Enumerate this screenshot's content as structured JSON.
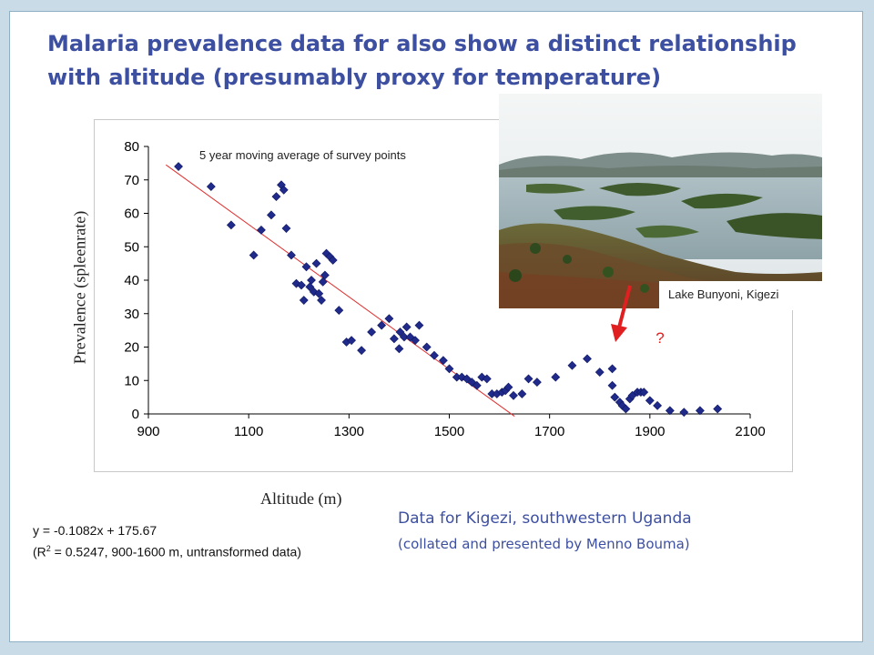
{
  "title": {
    "text_before": "Malaria prevalence data for also show a distinct relationship with altitude (presumably proxy for ",
    "bold_word": "temperature",
    "text_after": ")"
  },
  "labels": {
    "moving_average": "5 year moving average of survey points",
    "photo_caption": "Lake Bunyoni, Kigezi",
    "question_mark": "?"
  },
  "regression": {
    "equation": "y = -0.1082x + 175.67",
    "r2_open": "(R",
    "r2_sup": "2",
    "r2_rest": " = 0.5247, 900-1600 m, untransformed data)"
  },
  "data_source": {
    "line1": "Data for Kigezi, southwestern Uganda",
    "line2": "(collated and presented by Menno Bouma)"
  },
  "colors": {
    "title": "#3d4fa0",
    "marker": "#1f2a8a",
    "trend_line": "#e03030",
    "arrow": "#e02020"
  },
  "chart_data": {
    "type": "scatter",
    "xlabel": "Altitude (m)",
    "ylabel": "Prevalence (spleenrate)",
    "xlim": [
      900,
      2100
    ],
    "ylim": [
      0,
      80
    ],
    "xticks": [
      900,
      1100,
      1300,
      1500,
      1700,
      1900,
      2100
    ],
    "yticks": [
      0,
      10,
      20,
      30,
      40,
      50,
      60,
      70,
      80
    ],
    "grid": false,
    "trend_line": {
      "slope": -0.1082,
      "intercept": 175.67,
      "x_range": [
        935,
        1630
      ]
    },
    "points": [
      [
        960,
        74
      ],
      [
        1025,
        68
      ],
      [
        1065,
        56.5
      ],
      [
        1110,
        47.5
      ],
      [
        1125,
        55
      ],
      [
        1145,
        59.5
      ],
      [
        1155,
        65
      ],
      [
        1165,
        68.5
      ],
      [
        1170,
        67
      ],
      [
        1175,
        55.5
      ],
      [
        1185,
        47.5
      ],
      [
        1195,
        39
      ],
      [
        1205,
        38.5
      ],
      [
        1210,
        34
      ],
      [
        1215,
        44
      ],
      [
        1222,
        38
      ],
      [
        1225,
        40
      ],
      [
        1230,
        36.5
      ],
      [
        1235,
        45
      ],
      [
        1240,
        36
      ],
      [
        1245,
        34
      ],
      [
        1248,
        39.5
      ],
      [
        1252,
        41.5
      ],
      [
        1255,
        48
      ],
      [
        1262,
        47
      ],
      [
        1268,
        46
      ],
      [
        1280,
        31
      ],
      [
        1295,
        21.5
      ],
      [
        1305,
        22
      ],
      [
        1325,
        19
      ],
      [
        1345,
        24.5
      ],
      [
        1365,
        26.5
      ],
      [
        1380,
        28.5
      ],
      [
        1390,
        22.5
      ],
      [
        1400,
        19.5
      ],
      [
        1402,
        24.5
      ],
      [
        1410,
        23
      ],
      [
        1415,
        26
      ],
      [
        1422,
        23
      ],
      [
        1432,
        22
      ],
      [
        1440,
        26.5
      ],
      [
        1455,
        20
      ],
      [
        1470,
        17.5
      ],
      [
        1488,
        16
      ],
      [
        1500,
        13.5
      ],
      [
        1515,
        11
      ],
      [
        1525,
        11
      ],
      [
        1535,
        10.5
      ],
      [
        1545,
        9.5
      ],
      [
        1555,
        8.5
      ],
      [
        1565,
        11
      ],
      [
        1575,
        10.5
      ],
      [
        1585,
        6
      ],
      [
        1595,
        6
      ],
      [
        1605,
        6.5
      ],
      [
        1612,
        7
      ],
      [
        1618,
        8
      ],
      [
        1628,
        5.5
      ],
      [
        1645,
        6
      ],
      [
        1658,
        10.5
      ],
      [
        1675,
        9.5
      ],
      [
        1712,
        11
      ],
      [
        1745,
        14.5
      ],
      [
        1775,
        16.5
      ],
      [
        1800,
        12.5
      ],
      [
        1825,
        13.5
      ],
      [
        1825,
        8.5
      ],
      [
        1830,
        5
      ],
      [
        1840,
        3.5
      ],
      [
        1845,
        2.5
      ],
      [
        1852,
        1.5
      ],
      [
        1860,
        4.5
      ],
      [
        1865,
        5.5
      ],
      [
        1875,
        6.5
      ],
      [
        1882,
        6.5
      ],
      [
        1888,
        6.5
      ],
      [
        1900,
        4
      ],
      [
        1915,
        2.5
      ],
      [
        1940,
        1
      ],
      [
        1968,
        0.5
      ],
      [
        2000,
        1
      ],
      [
        2035,
        1.5
      ]
    ]
  }
}
